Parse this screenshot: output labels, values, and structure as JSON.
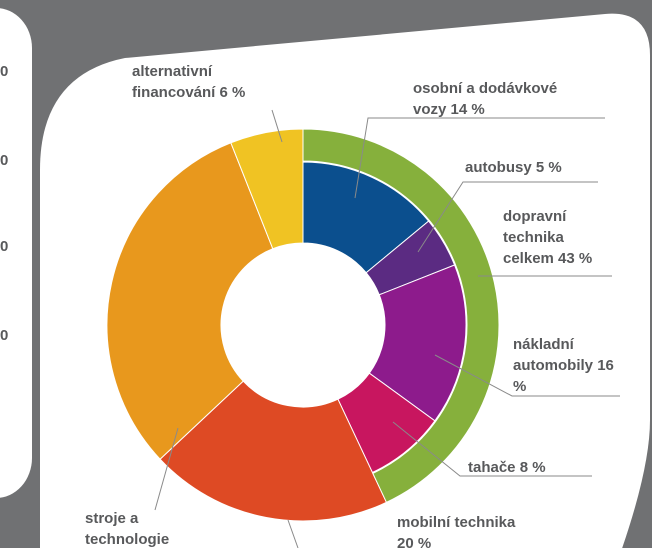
{
  "side_panel": {
    "labels": [
      "0",
      "0",
      "0",
      "0"
    ]
  },
  "chart_data": {
    "type": "donut",
    "categories": [
      "osobní a dodávkové vozy",
      "autobusy",
      "nákladní automobily",
      "tahače",
      "mobilní technika",
      "stroje a technologie",
      "alternativní financování"
    ],
    "values": [
      14,
      5,
      16,
      8,
      20,
      31,
      6
    ],
    "value_labels": [
      "14 %",
      "5 %",
      "16 %",
      "8 %",
      "20 %",
      null,
      "6 %"
    ],
    "colors": [
      "#0b4f8e",
      "#5b2b82",
      "#8d1b8c",
      "#c8165f",
      "#de4a24",
      "#e8981d",
      "#f0c323"
    ],
    "ring": {
      "label": "dopravní technika celkem",
      "value": 43,
      "value_label": "43 %",
      "color": "#86b03c"
    }
  }
}
